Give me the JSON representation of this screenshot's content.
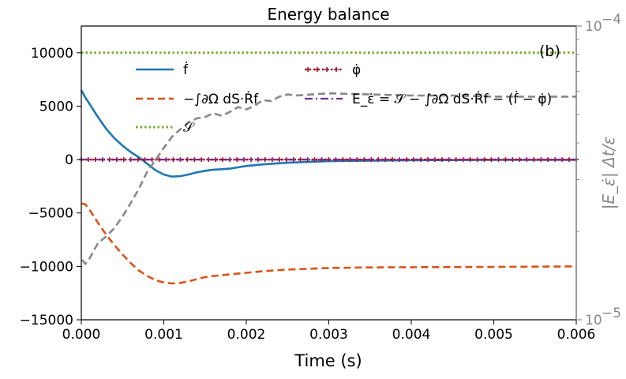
{
  "chart_data": {
    "type": "line",
    "title": "Energy balance",
    "xlabel": "Time (s)",
    "ylabel": "",
    "ylabel_right": "|E_ε̇| Δt/ε",
    "panel_label": "(b)",
    "xlim": [
      0,
      0.006
    ],
    "ylim": [
      -15000,
      12500
    ],
    "ylim_right": [
      1e-05,
      0.0001
    ],
    "yscale_right": "log",
    "x_ticks": [
      "0.000",
      "0.001",
      "0.002",
      "0.003",
      "0.004",
      "0.005",
      "0.006"
    ],
    "x_tick_values": [
      0,
      0.001,
      0.002,
      0.003,
      0.004,
      0.005,
      0.006
    ],
    "y_ticks": [
      "−15000",
      "−10000",
      "−5000",
      "0",
      "5000",
      "10000"
    ],
    "y_tick_values": [
      -15000,
      -10000,
      -5000,
      0,
      5000,
      10000
    ],
    "y_right_ticks": [
      "10",
      "10"
    ],
    "y_right_tick_exponents": [
      "−5",
      "−4"
    ],
    "y_right_tick_values": [
      1e-05,
      0.0001
    ],
    "legend_location": "upper center",
    "series": [
      {
        "name": "ḟ",
        "color": "#1f77b4",
        "style": "solid",
        "axis": "left",
        "x": [
          0,
          5e-05,
          0.0001,
          0.0002,
          0.0003,
          0.0004,
          0.0005,
          0.0006,
          0.0007,
          0.0008,
          0.0009,
          0.001,
          0.0011,
          0.0012,
          0.0013,
          0.0014,
          0.0015,
          0.0016,
          0.0017,
          0.0018,
          0.002,
          0.0022,
          0.0025,
          0.003,
          0.0035,
          0.004,
          0.005,
          0.006
        ],
        "values": [
          6500,
          5800,
          5200,
          4000,
          2900,
          2000,
          1300,
          700,
          200,
          -400,
          -1000,
          -1400,
          -1600,
          -1550,
          -1400,
          -1200,
          -1050,
          -950,
          -900,
          -850,
          -600,
          -450,
          -300,
          -150,
          -100,
          -60,
          -30,
          -20
        ]
      },
      {
        "name": "−∫∂Ω dS·Ṙf",
        "color": "#d95319",
        "style": "dashed",
        "axis": "left",
        "x": [
          0,
          5e-05,
          0.0001,
          0.0002,
          0.0003,
          0.0004,
          0.0005,
          0.0006,
          0.0007,
          0.0008,
          0.0009,
          0.001,
          0.0011,
          0.0012,
          0.0013,
          0.0014,
          0.0015,
          0.0016,
          0.0018,
          0.002,
          0.0022,
          0.0025,
          0.003,
          0.0035,
          0.004,
          0.005,
          0.006
        ],
        "values": [
          -4100,
          -4200,
          -4700,
          -5900,
          -7000,
          -8000,
          -8900,
          -9700,
          -10400,
          -10900,
          -11300,
          -11500,
          -11600,
          -11550,
          -11400,
          -11200,
          -11000,
          -10900,
          -10750,
          -10600,
          -10450,
          -10300,
          -10150,
          -10100,
          -10080,
          -10050,
          -10000
        ]
      },
      {
        "name": "𝒮",
        "color": "#77ac30",
        "style": "dotted",
        "axis": "left",
        "x": [
          0,
          0.006
        ],
        "values": [
          10000,
          10000
        ]
      },
      {
        "name": "φ̇",
        "color": "#a2142f",
        "style": "dotted-plus",
        "axis": "left",
        "x": [
          0,
          0.006
        ],
        "values": [
          0,
          0
        ]
      },
      {
        "name": "E_ε̇ = 𝒮 − ∫∂Ω dS·Ṙf − (ḟ − φ̇)",
        "color": "#7e2f8e",
        "style": "dashdot",
        "axis": "left",
        "x": [
          0,
          0.006
        ],
        "values": [
          0,
          0
        ]
      },
      {
        "name": "|E_ε̇| Δt/ε",
        "color": "#888888",
        "style": "dashed",
        "axis": "right",
        "x": [
          1e-05,
          5e-05,
          0.0001,
          0.0002,
          0.0003,
          0.0004,
          0.0005,
          0.0006,
          0.0007,
          0.0008,
          0.0009,
          0.001,
          0.0011,
          0.0012,
          0.0013,
          0.0014,
          0.0015,
          0.0016,
          0.0017,
          0.0018,
          0.0019,
          0.002,
          0.0021,
          0.0022,
          0.0023,
          0.0024,
          0.0025,
          0.0026,
          0.0028,
          0.003,
          0.0035,
          0.004,
          0.0045,
          0.005,
          0.0055,
          0.006
        ],
        "values": [
          1.6e-05,
          1.55e-05,
          1.62e-05,
          1.82e-05,
          1.92e-05,
          2.05e-05,
          2.25e-05,
          2.5e-05,
          2.8e-05,
          3.2e-05,
          3.5e-05,
          3.85e-05,
          4.2e-05,
          4.45e-05,
          4.7e-05,
          4.85e-05,
          4.9e-05,
          5.05e-05,
          4.95e-05,
          5.1e-05,
          5.3e-05,
          5.2e-05,
          5.35e-05,
          5.6e-05,
          5.55e-05,
          5.75e-05,
          5.85e-05,
          5.8e-05,
          5.85e-05,
          5.9e-05,
          5.85e-05,
          5.8e-05,
          5.8e-05,
          5.75e-05,
          5.75e-05,
          5.75e-05
        ]
      }
    ]
  }
}
